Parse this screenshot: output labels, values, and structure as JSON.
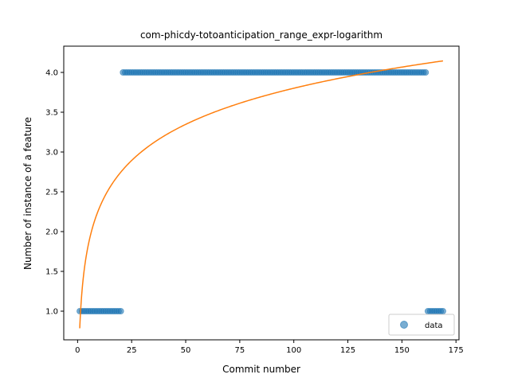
{
  "chart_data": {
    "type": "scatter",
    "title": "com-phicdy-totoanticipation_range_expr-logarithm",
    "xlabel": "Commit number",
    "ylabel": "Number of instance of a feature",
    "xlim": [
      -6.4,
      176.4
    ],
    "ylim": [
      0.64,
      4.33
    ],
    "xticks": [
      0,
      25,
      50,
      75,
      100,
      125,
      150,
      175
    ],
    "xtick_labels": [
      "0",
      "25",
      "50",
      "75",
      "100",
      "125",
      "150",
      "175"
    ],
    "yticks": [
      1.0,
      1.5,
      2.0,
      2.5,
      3.0,
      3.5,
      4.0
    ],
    "ytick_labels": [
      "1.0",
      "1.5",
      "2.0",
      "2.5",
      "3.0",
      "3.5",
      "4.0"
    ],
    "grid": false,
    "legend_position": "lower-right",
    "series": [
      {
        "name": "data",
        "kind": "scatter",
        "color": "#1f77b4",
        "segments": [
          {
            "x_start": 1,
            "x_end": 20,
            "y": 1
          },
          {
            "x_start": 21,
            "x_end": 161,
            "y": 4
          },
          {
            "x_start": 162,
            "x_end": 169,
            "y": 1
          }
        ]
      },
      {
        "kind": "line",
        "color": "#ff7f0e",
        "formula": "y = a + b*ln(x)",
        "a": 0.785,
        "b": 0.655,
        "x_range": [
          1,
          169
        ]
      }
    ]
  }
}
